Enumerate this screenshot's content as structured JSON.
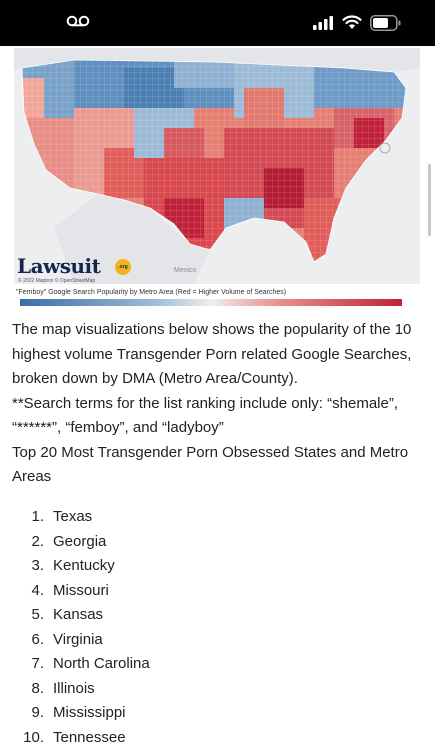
{
  "status_bar": {
    "voicemail_icon": "voicemail-icon",
    "signal_icon": "cellular-signal-icon",
    "wifi_icon": "wifi-icon",
    "battery_icon": "battery-icon"
  },
  "map": {
    "brand_name": "Lawsuit",
    "brand_badge": ".org",
    "credits": "© 2022 Mapbox © OpenStreetMap",
    "region_label": "Mexico",
    "legend_caption": "\"Femboy\" Google Search Popularity by Metro Area (Red  = Higher Volume of Searches)",
    "legend_colors": {
      "low": "#3a6fa6",
      "mid": "#eeeeee",
      "high": "#c0213a"
    }
  },
  "article": {
    "intro": "The map visualizations below shows the popularity of the 10 highest volume Transgender Porn related Google Searches, broken down by DMA (Metro Area/County).",
    "search_note": "**Search terms for the list ranking include only: “shemale”, “******”, “femboy”, and “ladyboy”",
    "list_heading": "Top 20 Most Transgender Porn Obsessed States and Metro Areas",
    "ranking": [
      {
        "rank": "1.",
        "name": "Texas"
      },
      {
        "rank": "2.",
        "name": "Georgia"
      },
      {
        "rank": "3.",
        "name": "Kentucky"
      },
      {
        "rank": "4.",
        "name": "Missouri"
      },
      {
        "rank": "5.",
        "name": "Kansas"
      },
      {
        "rank": "6.",
        "name": "Virginia"
      },
      {
        "rank": "7.",
        "name": "North Carolina"
      },
      {
        "rank": "8.",
        "name": "Illinois"
      },
      {
        "rank": "9.",
        "name": "Mississippi"
      },
      {
        "rank": "10.",
        "name": "Tennessee"
      }
    ]
  }
}
